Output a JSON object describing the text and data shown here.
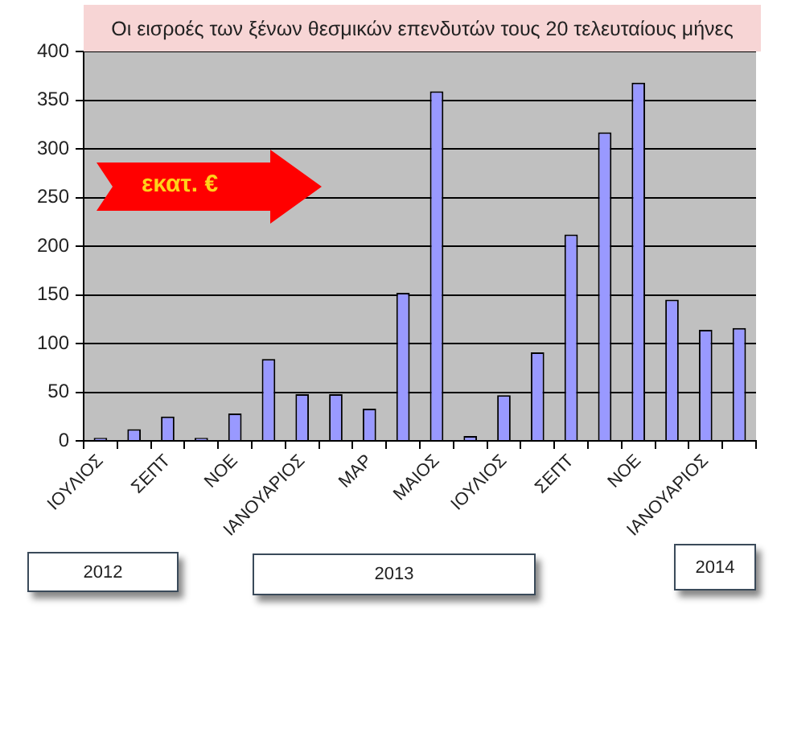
{
  "chart_data": {
    "type": "bar",
    "title": "Οι εισροές των ξένων θεσμικών επενδυτών τους 20 τελευταίους μήνες",
    "ylabel": "εκατ. €",
    "categories": [
      "ΙΟΥΛΙΟΣ",
      null,
      "ΣΕΠΤ",
      null,
      "ΝΟΕ",
      null,
      "ΙΑΝΟΥΑΡΙΟΣ",
      null,
      "ΜΑΡ",
      null,
      "ΜΑΙΟΣ",
      null,
      "ΙΟΥΛΙΟΣ",
      null,
      "ΣΕΠΤ",
      null,
      "ΝΟΕ",
      null,
      "ΙΑΝΟΥΑΡΙΟΣ",
      null
    ],
    "values": [
      3,
      12,
      25,
      3,
      28,
      84,
      48,
      48,
      33,
      152,
      359,
      5,
      47,
      91,
      212,
      317,
      368,
      145,
      114,
      116
    ],
    "color": "#9999ff",
    "ylim": [
      0,
      400
    ],
    "yticks": [
      0,
      50,
      100,
      150,
      200,
      250,
      300,
      350,
      400
    ],
    "grid": "y",
    "legend": false,
    "annotations": [
      "2012",
      "2013",
      "2014"
    ]
  }
}
